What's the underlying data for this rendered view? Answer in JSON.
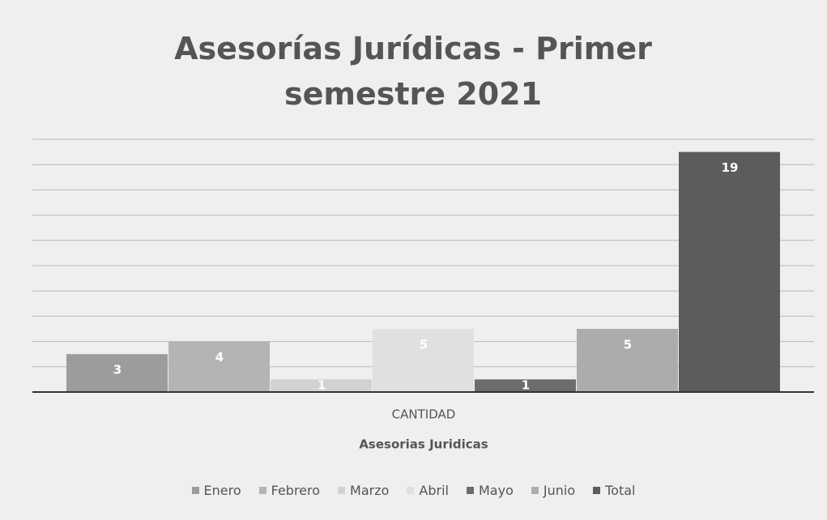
{
  "chart_data": {
    "type": "bar",
    "title": "Asesorías Jurídicas - Primer semestre 2021",
    "categories": [
      "CANTIDAD"
    ],
    "x_label": "Asesorias Juridicas",
    "series": [
      {
        "name": "Enero",
        "color": "#9c9c9c",
        "values": [
          3
        ]
      },
      {
        "name": "Febrero",
        "color": "#b4b4b4",
        "values": [
          4
        ]
      },
      {
        "name": "Marzo",
        "color": "#d2d2d2",
        "values": [
          1
        ]
      },
      {
        "name": "Abril",
        "color": "#e0e0e0",
        "values": [
          5
        ]
      },
      {
        "name": "Mayo",
        "color": "#6c6c6c",
        "values": [
          1
        ]
      },
      {
        "name": "Junio",
        "color": "#acacac",
        "values": [
          5
        ]
      },
      {
        "name": "Total",
        "color": "#5c5c5c",
        "values": [
          19
        ]
      }
    ],
    "ylim": [
      0,
      20
    ],
    "yticks": [
      0,
      2,
      4,
      6,
      8,
      10,
      12,
      14,
      16,
      18,
      20
    ],
    "grid": true,
    "y_tick_labels": false,
    "legend": "bottom"
  }
}
